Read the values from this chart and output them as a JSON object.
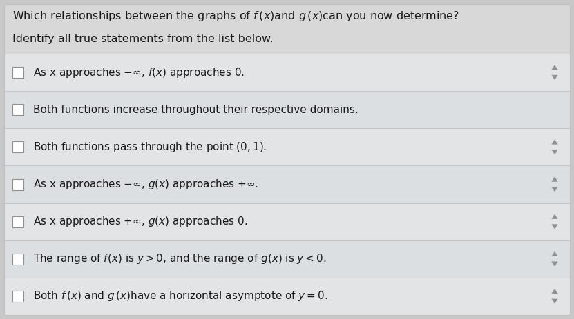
{
  "title_line1": "Which relationships between the graphs of $f\\,(x)$and $g\\,(x)$can you now determine?",
  "title_line2": "Identify all true statements from the list below.",
  "statements": [
    "As x approaches $-\\infty$, $f(x)$ approaches 0.",
    "Both functions increase throughout their respective domains.",
    "Both functions pass through the point $(0, 1)$.",
    "As x approaches $-\\infty$, $g(x)$ approaches $+\\infty$.",
    "As x approaches $+\\infty$, $g(x)$ approaches 0.",
    "The range of $f(x)$ is $y > 0$, and the range of $g(x)$ is $y < 0$.",
    "Both $f\\,(x)$ and $g\\,(x)$have a horizontal asymptote of $y = 0$."
  ],
  "bg_color": "#c8c8c8",
  "title_bg_color": "#d8d8d8",
  "row_bg_even": "#e2e4e6",
  "row_bg_odd": "#dcdfe2",
  "row_border_color": "#c0c0c0",
  "text_color": "#1a1a1a",
  "checkbox_color": "#909090",
  "spinner_color": "#909090",
  "title_fontsize": 11.5,
  "statement_fontsize": 11.0,
  "arrow_rows": [
    0,
    2,
    3,
    4,
    5,
    6
  ]
}
